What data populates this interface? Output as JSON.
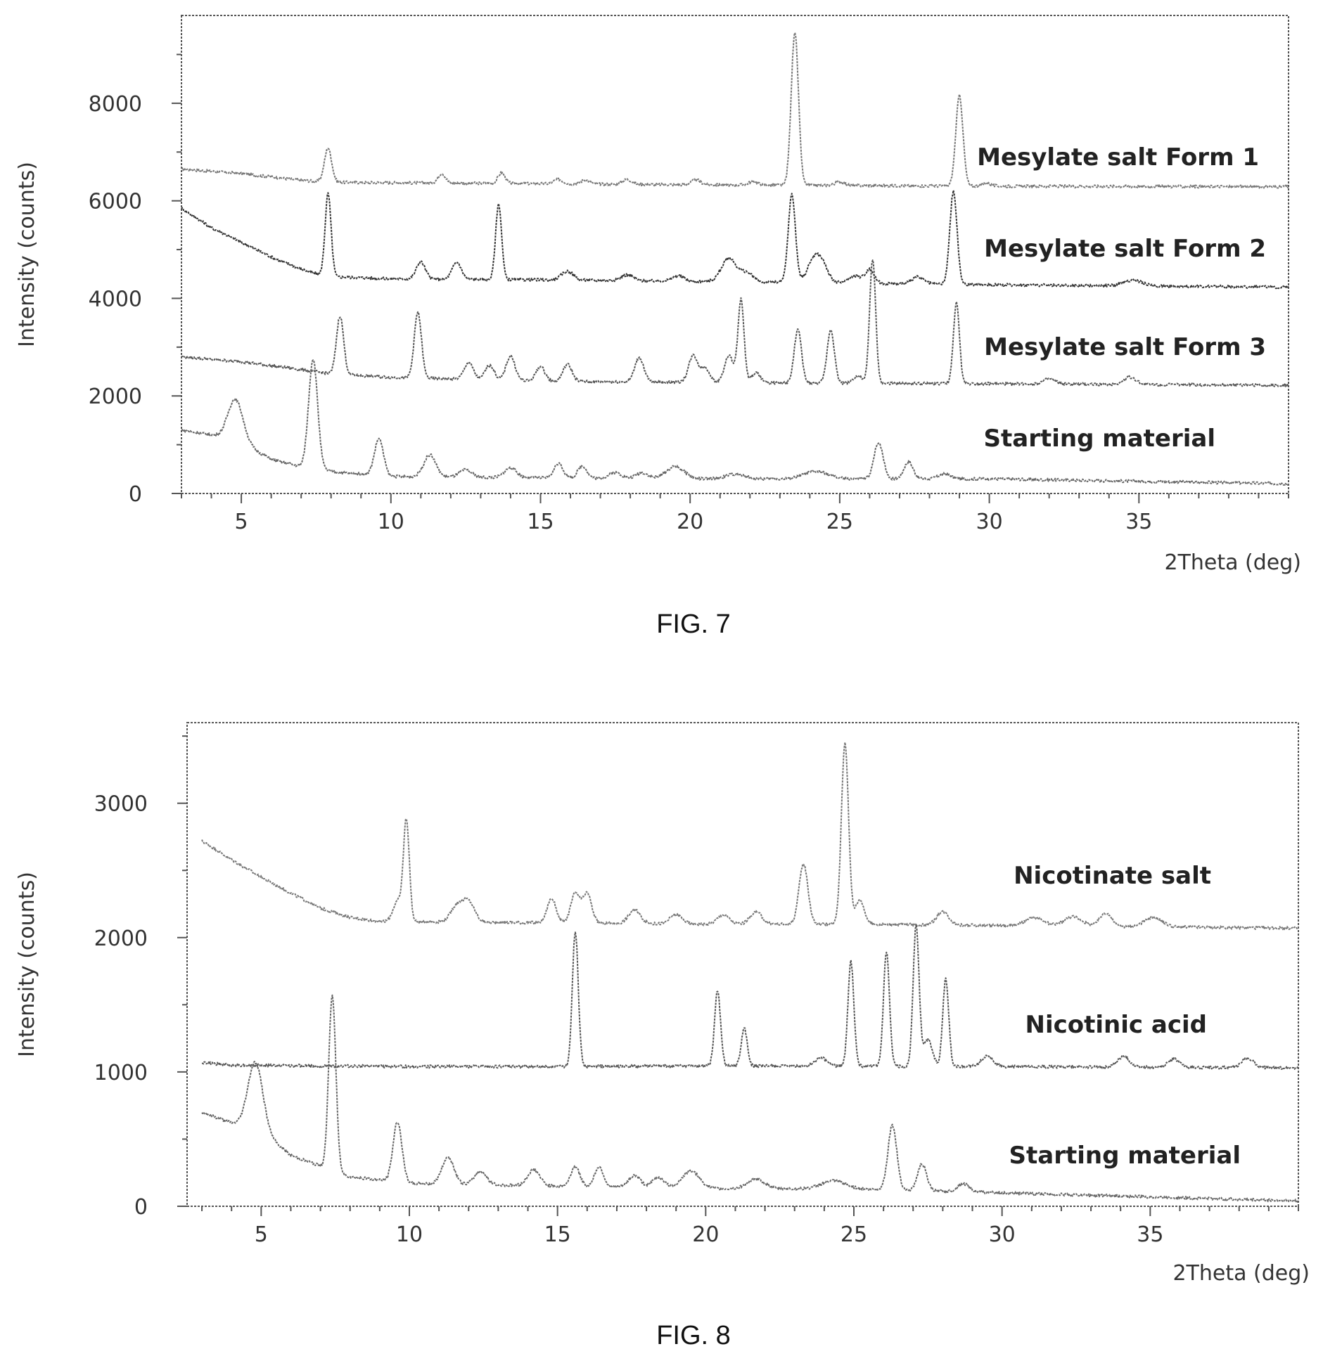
{
  "figures": [
    {
      "caption": "FIG. 7"
    },
    {
      "caption": "FIG. 8"
    }
  ],
  "chart_data": [
    {
      "type": "line",
      "xlabel": "2Theta (deg)",
      "ylabel": "Intensity (counts)",
      "xlim": [
        3,
        40
      ],
      "ylim": [
        0,
        9800
      ],
      "xticks": [
        5,
        10,
        15,
        20,
        25,
        30,
        35
      ],
      "yticks": [
        0,
        2000,
        4000,
        6000,
        8000
      ],
      "grid": false,
      "legend": "labels placed beside each trace on the right",
      "series": [
        {
          "name": "Mesylate salt Form 1",
          "baseline": [
            [
              3,
              6650
            ],
            [
              5,
              6560
            ],
            [
              7,
              6420
            ],
            [
              8,
              6380
            ],
            [
              20,
              6330
            ],
            [
              30,
              6300
            ],
            [
              40,
              6290
            ]
          ],
          "peaks": [
            [
              7.9,
              700,
              0.12
            ],
            [
              11.7,
              200,
              0.12
            ],
            [
              13.7,
              220,
              0.12
            ],
            [
              15.6,
              90,
              0.15
            ],
            [
              16.5,
              80,
              0.15
            ],
            [
              17.9,
              100,
              0.15
            ],
            [
              20.2,
              100,
              0.15
            ],
            [
              22.1,
              70,
              0.15
            ],
            [
              23.5,
              3150,
              0.12
            ],
            [
              25.0,
              80,
              0.15
            ],
            [
              29.0,
              1850,
              0.12
            ],
            [
              29.9,
              60,
              0.15
            ]
          ]
        },
        {
          "name": "Mesylate salt Form 2",
          "baseline": [
            [
              3,
              5850
            ],
            [
              4,
              5450
            ],
            [
              5,
              5150
            ],
            [
              6,
              4850
            ],
            [
              7,
              4600
            ],
            [
              7.8,
              4450
            ],
            [
              10,
              4400
            ],
            [
              15,
              4380
            ],
            [
              20,
              4350
            ],
            [
              30,
              4280
            ],
            [
              40,
              4230
            ]
          ],
          "peaks": [
            [
              7.9,
              1700,
              0.1
            ],
            [
              11.0,
              350,
              0.15
            ],
            [
              12.2,
              350,
              0.15
            ],
            [
              13.6,
              1550,
              0.1
            ],
            [
              15.9,
              180,
              0.2
            ],
            [
              17.9,
              120,
              0.2
            ],
            [
              19.6,
              110,
              0.2
            ],
            [
              21.3,
              480,
              0.25
            ],
            [
              21.9,
              180,
              0.2
            ],
            [
              23.4,
              1800,
              0.12
            ],
            [
              24.1,
              400,
              0.2
            ],
            [
              24.4,
              380,
              0.2
            ],
            [
              25.5,
              150,
              0.2
            ],
            [
              26.0,
              280,
              0.15
            ],
            [
              27.6,
              140,
              0.2
            ],
            [
              28.8,
              1900,
              0.12
            ],
            [
              34.8,
              120,
              0.3
            ]
          ]
        },
        {
          "name": "Mesylate salt Form 3",
          "baseline": [
            [
              3,
              2800
            ],
            [
              5,
              2700
            ],
            [
              7,
              2540
            ],
            [
              8,
              2450
            ],
            [
              10,
              2380
            ],
            [
              15,
              2300
            ],
            [
              20,
              2280
            ],
            [
              25,
              2260
            ],
            [
              30,
              2250
            ],
            [
              40,
              2220
            ]
          ],
          "peaks": [
            [
              8.3,
              1200,
              0.12
            ],
            [
              10.9,
              1350,
              0.12
            ],
            [
              12.6,
              350,
              0.15
            ],
            [
              13.3,
              300,
              0.15
            ],
            [
              14.0,
              500,
              0.15
            ],
            [
              15.0,
              300,
              0.15
            ],
            [
              15.9,
              350,
              0.15
            ],
            [
              18.3,
              500,
              0.15
            ],
            [
              20.1,
              550,
              0.15
            ],
            [
              20.5,
              300,
              0.15
            ],
            [
              21.3,
              550,
              0.15
            ],
            [
              21.7,
              1700,
              0.1
            ],
            [
              22.2,
              200,
              0.15
            ],
            [
              23.6,
              1100,
              0.12
            ],
            [
              24.7,
              1100,
              0.12
            ],
            [
              25.6,
              150,
              0.15
            ],
            [
              26.1,
              2550,
              0.1
            ],
            [
              28.9,
              1650,
              0.1
            ],
            [
              32.0,
              100,
              0.2
            ],
            [
              34.7,
              150,
              0.2
            ]
          ]
        },
        {
          "name": "Starting material",
          "baseline": [
            [
              3,
              1300
            ],
            [
              4,
              1200
            ],
            [
              5,
              1050
            ],
            [
              6,
              700
            ],
            [
              7,
              550
            ],
            [
              8,
              450
            ],
            [
              10,
              350
            ],
            [
              15,
              320
            ],
            [
              20,
              300
            ],
            [
              25,
              300
            ],
            [
              30,
              300
            ],
            [
              40,
              200
            ]
          ],
          "peaks": [
            [
              4.8,
              850,
              0.25
            ],
            [
              7.4,
              2250,
              0.15
            ],
            [
              9.6,
              750,
              0.15
            ],
            [
              11.3,
              450,
              0.2
            ],
            [
              12.5,
              150,
              0.2
            ],
            [
              14.0,
              200,
              0.2
            ],
            [
              15.6,
              300,
              0.15
            ],
            [
              16.4,
              250,
              0.15
            ],
            [
              17.5,
              120,
              0.2
            ],
            [
              18.4,
              120,
              0.2
            ],
            [
              19.5,
              250,
              0.3
            ],
            [
              21.5,
              100,
              0.3
            ],
            [
              24.2,
              150,
              0.4
            ],
            [
              26.3,
              750,
              0.15
            ],
            [
              27.3,
              350,
              0.15
            ],
            [
              28.5,
              100,
              0.2
            ]
          ]
        }
      ]
    },
    {
      "type": "line",
      "xlabel": "2Theta (deg)",
      "ylabel": "Intensity (counts)",
      "xlim": [
        2.5,
        40
      ],
      "ylim": [
        0,
        3600
      ],
      "xticks": [
        5,
        10,
        15,
        20,
        25,
        30,
        35
      ],
      "yticks": [
        0,
        1000,
        2000,
        3000
      ],
      "grid": false,
      "legend": "labels placed beside each trace on the right",
      "series": [
        {
          "name": "Nicotinate salt",
          "baseline": [
            [
              3,
              2720
            ],
            [
              4,
              2580
            ],
            [
              5,
              2450
            ],
            [
              6,
              2330
            ],
            [
              7,
              2220
            ],
            [
              8,
              2150
            ],
            [
              9,
              2120
            ],
            [
              15,
              2110
            ],
            [
              20,
              2100
            ],
            [
              25,
              2100
            ],
            [
              30,
              2090
            ],
            [
              40,
              2070
            ]
          ],
          "peaks": [
            [
              9.6,
              150,
              0.15
            ],
            [
              9.9,
              750,
              0.1
            ],
            [
              11.6,
              120,
              0.2
            ],
            [
              12.0,
              150,
              0.2
            ],
            [
              14.8,
              180,
              0.15
            ],
            [
              15.6,
              220,
              0.15
            ],
            [
              16.0,
              220,
              0.15
            ],
            [
              17.6,
              100,
              0.2
            ],
            [
              19.0,
              70,
              0.2
            ],
            [
              20.6,
              70,
              0.2
            ],
            [
              21.7,
              90,
              0.2
            ],
            [
              23.3,
              450,
              0.15
            ],
            [
              24.7,
              1350,
              0.12
            ],
            [
              25.2,
              180,
              0.15
            ],
            [
              28.0,
              100,
              0.2
            ],
            [
              31.1,
              60,
              0.3
            ],
            [
              32.4,
              70,
              0.3
            ],
            [
              33.5,
              100,
              0.2
            ],
            [
              35.1,
              70,
              0.3
            ]
          ]
        },
        {
          "name": "Nicotinic acid",
          "baseline": [
            [
              3,
              1070
            ],
            [
              4,
              1050
            ],
            [
              10,
              1040
            ],
            [
              15,
              1040
            ],
            [
              20,
              1045
            ],
            [
              30,
              1040
            ],
            [
              40,
              1030
            ]
          ],
          "peaks": [
            [
              15.6,
              1000,
              0.1
            ],
            [
              20.4,
              560,
              0.1
            ],
            [
              21.3,
              280,
              0.1
            ],
            [
              23.9,
              60,
              0.2
            ],
            [
              24.9,
              780,
              0.1
            ],
            [
              26.1,
              850,
              0.1
            ],
            [
              27.1,
              1050,
              0.1
            ],
            [
              27.5,
              200,
              0.15
            ],
            [
              28.1,
              650,
              0.1
            ],
            [
              29.5,
              80,
              0.2
            ],
            [
              34.1,
              80,
              0.2
            ],
            [
              35.8,
              60,
              0.2
            ],
            [
              38.3,
              70,
              0.2
            ]
          ]
        },
        {
          "name": "Starting material",
          "baseline": [
            [
              3,
              700
            ],
            [
              4,
              620
            ],
            [
              5,
              560
            ],
            [
              6,
              380
            ],
            [
              7,
              300
            ],
            [
              8,
              220
            ],
            [
              10,
              170
            ],
            [
              15,
              150
            ],
            [
              20,
              130
            ],
            [
              25,
              130
            ],
            [
              30,
              100
            ],
            [
              40,
              40
            ]
          ],
          "peaks": [
            [
              4.8,
              500,
              0.25
            ],
            [
              7.4,
              1300,
              0.12
            ],
            [
              9.6,
              450,
              0.15
            ],
            [
              11.3,
              200,
              0.2
            ],
            [
              12.4,
              100,
              0.2
            ],
            [
              14.2,
              120,
              0.2
            ],
            [
              15.6,
              150,
              0.15
            ],
            [
              16.4,
              150,
              0.15
            ],
            [
              17.6,
              90,
              0.2
            ],
            [
              18.4,
              80,
              0.2
            ],
            [
              19.5,
              130,
              0.3
            ],
            [
              21.7,
              70,
              0.3
            ],
            [
              24.3,
              60,
              0.4
            ],
            [
              26.3,
              480,
              0.15
            ],
            [
              27.3,
              200,
              0.15
            ],
            [
              28.7,
              60,
              0.2
            ]
          ]
        }
      ]
    }
  ]
}
